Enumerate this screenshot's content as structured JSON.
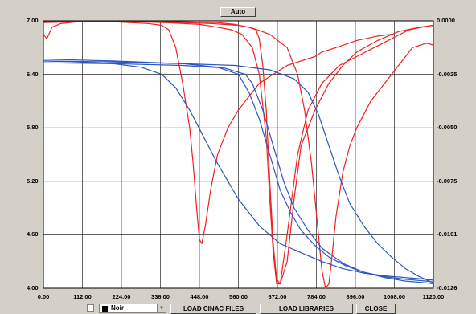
{
  "toolbar_top": {
    "auto_label": "Auto"
  },
  "toolbar_bottom": {
    "color_select": {
      "value": "Noir"
    },
    "load_cinac_label": "LOAD CINAC FILES",
    "load_libraries_label": "LOAD LIBRARIES",
    "close_label": "CLOSE"
  },
  "chart_data": {
    "type": "line",
    "x_ticks": [
      "0.00",
      "112.00",
      "224.00",
      "336.00",
      "448.00",
      "560.00",
      "672.00",
      "784.00",
      "896.00",
      "1008.00",
      "1120.00"
    ],
    "y_left_ticks": [
      "7.00",
      "6.40",
      "5.80",
      "5.20",
      "4.60",
      "4.00"
    ],
    "y_right_ticks": [
      "0.0000",
      "-0.0025",
      "-0.0050",
      "-0.0075",
      "-0.0101",
      "-0.0126"
    ],
    "xlim": [
      0,
      1120
    ],
    "ylim_left": [
      4.0,
      7.0
    ],
    "ylim_right": [
      -0.0126,
      0.0
    ],
    "grid": true,
    "series_colors": {
      "red": "#ee2020",
      "blue": "#2b55c0"
    },
    "red_series": [
      {
        "x": [
          0,
          10,
          25,
          50,
          100,
          200,
          300,
          340,
          360,
          380,
          400,
          420,
          430,
          440,
          448,
          455,
          465,
          480,
          500,
          530,
          560,
          590,
          620,
          660,
          700,
          740,
          780,
          800,
          840,
          900,
          960,
          1000
        ],
        "y": [
          6.85,
          6.8,
          6.93,
          6.97,
          6.99,
          6.99,
          6.97,
          6.95,
          6.9,
          6.7,
          6.3,
          5.8,
          5.4,
          4.9,
          4.55,
          4.5,
          4.7,
          5.1,
          5.5,
          5.8,
          6.0,
          6.15,
          6.3,
          6.4,
          6.5,
          6.55,
          6.6,
          6.65,
          6.7,
          6.78,
          6.83,
          6.85
        ]
      },
      {
        "x": [
          0,
          50,
          150,
          250,
          350,
          450,
          500,
          540,
          570,
          600,
          620,
          640,
          650,
          660,
          670,
          680,
          700,
          730,
          760,
          800,
          850,
          900,
          950,
          1000,
          1050,
          1100,
          1120
        ],
        "y": [
          6.98,
          6.99,
          6.99,
          6.99,
          6.98,
          6.96,
          6.93,
          6.9,
          6.85,
          6.7,
          6.4,
          5.7,
          5.0,
          4.4,
          4.05,
          4.05,
          4.6,
          5.5,
          6.0,
          6.3,
          6.5,
          6.6,
          6.7,
          6.8,
          6.9,
          6.94,
          6.95
        ]
      },
      {
        "x": [
          0,
          100,
          200,
          300,
          400,
          480,
          520,
          560,
          590,
          610,
          620,
          630,
          640,
          650,
          660,
          670,
          680,
          700,
          720,
          740,
          780,
          820,
          860,
          900,
          960,
          1020,
          1080,
          1120
        ],
        "y": [
          6.98,
          6.99,
          6.99,
          6.99,
          6.98,
          6.97,
          6.96,
          6.95,
          6.93,
          6.9,
          6.8,
          6.5,
          6.0,
          5.2,
          4.5,
          4.1,
          4.05,
          4.3,
          5.0,
          5.6,
          6.0,
          6.3,
          6.5,
          6.65,
          6.78,
          6.88,
          6.93,
          6.95
        ]
      },
      {
        "x": [
          0,
          100,
          200,
          300,
          400,
          500,
          550,
          600,
          650,
          700,
          730,
          750,
          770,
          790,
          800,
          810,
          820,
          830,
          840,
          860,
          880,
          900,
          940,
          980,
          1020,
          1060,
          1100,
          1120
        ],
        "y": [
          6.99,
          6.99,
          6.99,
          6.99,
          6.99,
          6.98,
          6.96,
          6.92,
          6.85,
          6.7,
          6.4,
          6.0,
          5.4,
          4.6,
          4.2,
          4.0,
          4.05,
          4.4,
          4.8,
          5.3,
          5.6,
          5.8,
          6.1,
          6.3,
          6.5,
          6.7,
          6.75,
          6.73
        ]
      }
    ],
    "blue_series": [
      {
        "x": [
          0,
          100,
          200,
          280,
          340,
          380,
          420,
          460,
          500,
          560,
          620,
          680,
          740,
          800,
          860,
          920,
          980,
          1040,
          1100,
          1120
        ],
        "y": [
          6.55,
          6.54,
          6.52,
          6.48,
          6.4,
          6.25,
          6.0,
          5.7,
          5.4,
          5.0,
          4.7,
          4.5,
          4.4,
          4.3,
          4.22,
          4.17,
          4.14,
          4.12,
          4.1,
          4.09
        ]
      },
      {
        "x": [
          0,
          200,
          400,
          500,
          560,
          590,
          620,
          650,
          680,
          710,
          740,
          780,
          820,
          870,
          920,
          980,
          1040,
          1100,
          1120
        ],
        "y": [
          6.55,
          6.54,
          6.52,
          6.48,
          6.4,
          6.2,
          5.9,
          5.5,
          5.1,
          4.85,
          4.65,
          4.48,
          4.35,
          4.25,
          4.18,
          4.13,
          4.1,
          4.08,
          4.07
        ]
      },
      {
        "x": [
          0,
          200,
          400,
          520,
          580,
          600,
          630,
          660,
          690,
          720,
          760,
          800,
          860,
          920,
          980,
          1040,
          1100,
          1120
        ],
        "y": [
          6.53,
          6.52,
          6.5,
          6.47,
          6.4,
          6.3,
          6.0,
          5.6,
          5.2,
          4.9,
          4.65,
          4.45,
          4.28,
          4.18,
          4.12,
          4.08,
          4.06,
          4.05
        ]
      },
      {
        "x": [
          0,
          200,
          400,
          550,
          650,
          720,
          760,
          790,
          820,
          850,
          880,
          920,
          960,
          1000,
          1040,
          1080,
          1120
        ],
        "y": [
          6.57,
          6.55,
          6.52,
          6.5,
          6.45,
          6.35,
          6.2,
          5.95,
          5.6,
          5.25,
          4.95,
          4.7,
          4.5,
          4.35,
          4.22,
          4.13,
          4.06
        ]
      }
    ]
  }
}
